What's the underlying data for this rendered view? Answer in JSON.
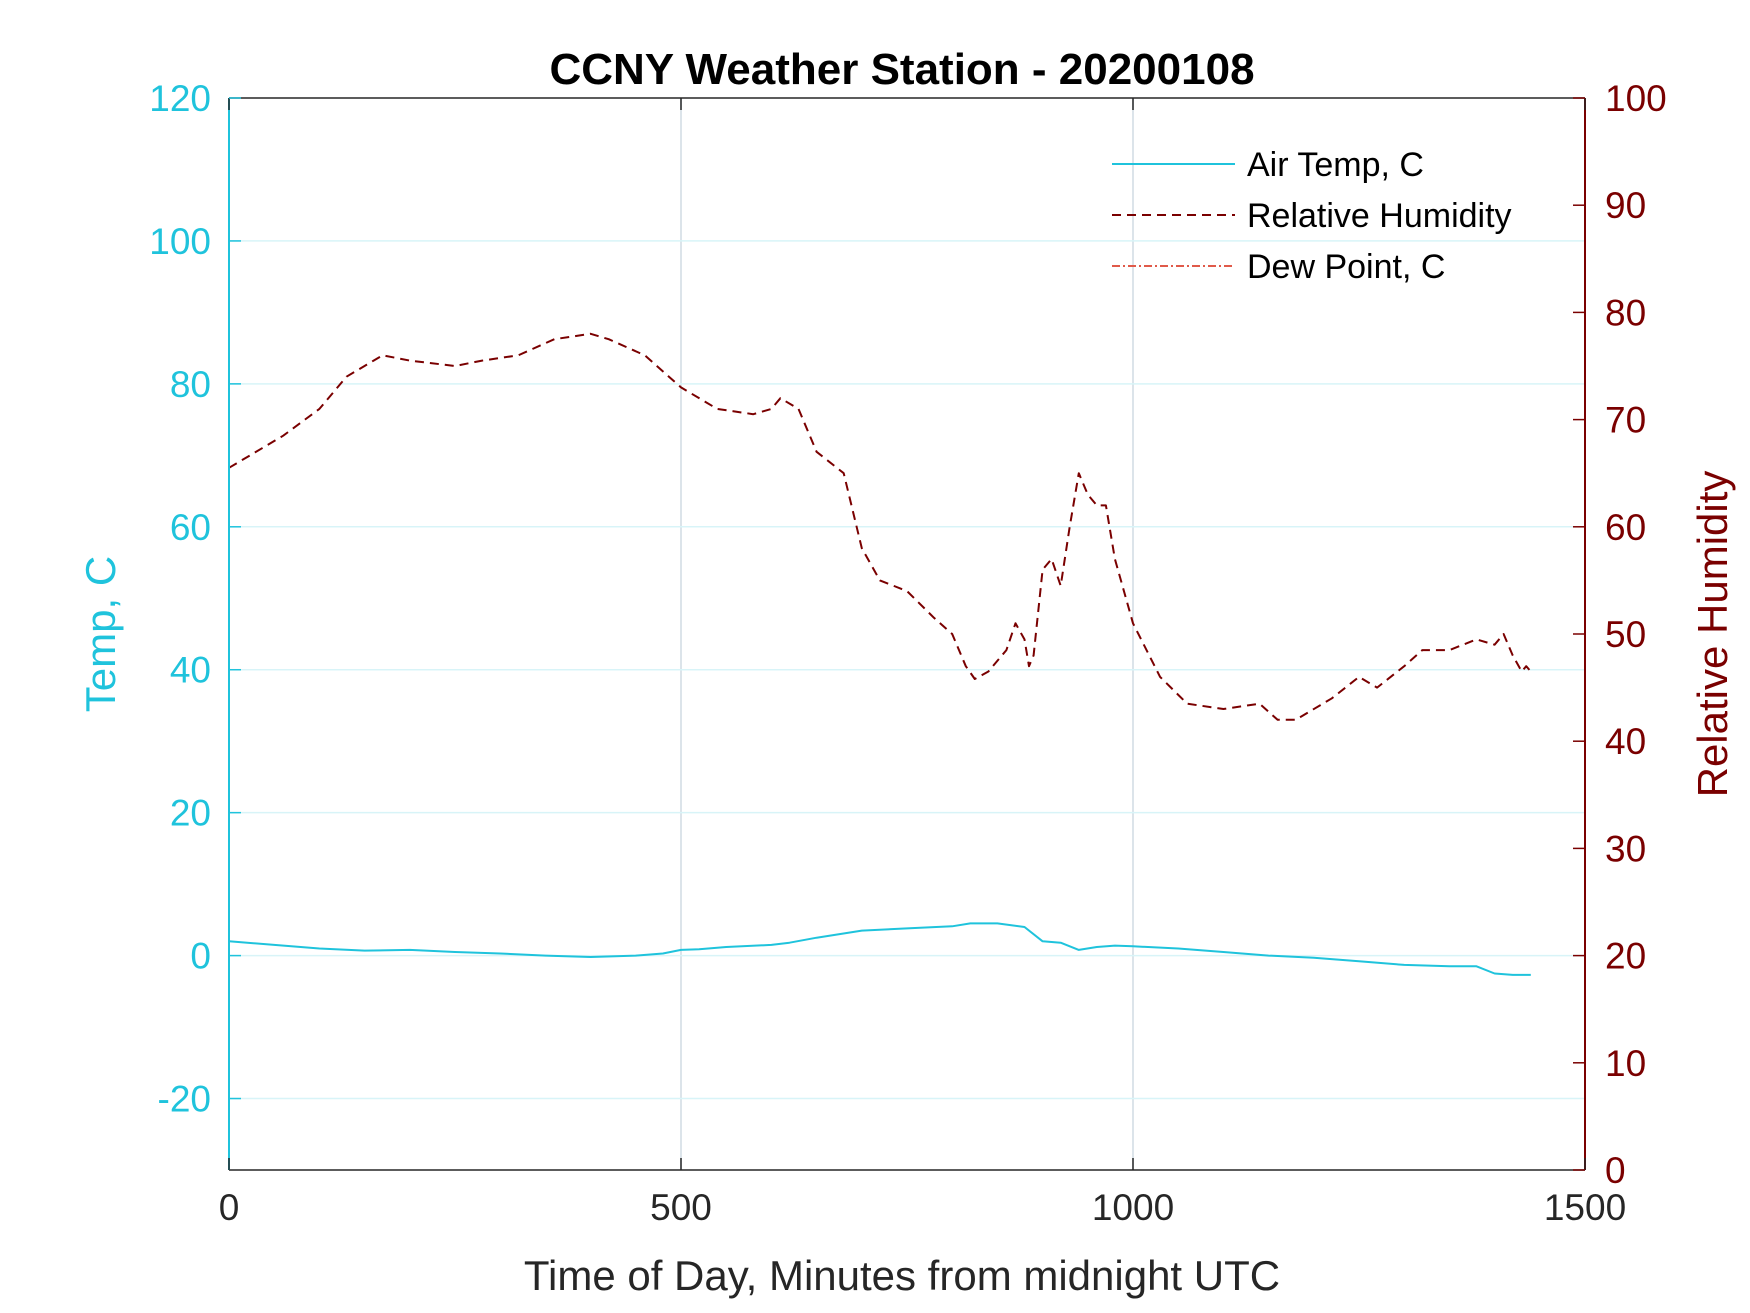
{
  "chart_data": {
    "type": "line",
    "title": "CCNY Weather Station - 20200108",
    "xlabel": "Time of Day, Minutes from midnight UTC",
    "ylabel_left": "Temp, C",
    "ylabel_right": "Relative Humidity",
    "xlim": [
      0,
      1500
    ],
    "ylim_left": [
      -30,
      120
    ],
    "ylim_right": [
      0,
      100
    ],
    "xticks": [
      0,
      500,
      1000,
      1500
    ],
    "yticks_left": [
      -20,
      0,
      20,
      40,
      60,
      80,
      100,
      120
    ],
    "yticks_right": [
      0,
      10,
      20,
      30,
      40,
      50,
      60,
      70,
      80,
      90,
      100
    ],
    "grid": true,
    "legend_position": "top-right",
    "colors": {
      "left_axis": "#1fc3dc",
      "right_axis": "#7a0000",
      "dew_point": "#e05a4a",
      "grid": "#d0dbe3"
    },
    "series": [
      {
        "name": "Air Temp, C",
        "axis": "left",
        "style": "solid",
        "color": "#1fc3dc",
        "x": [
          0,
          50,
          100,
          150,
          200,
          250,
          300,
          350,
          400,
          450,
          480,
          500,
          520,
          550,
          600,
          620,
          650,
          700,
          750,
          800,
          820,
          850,
          880,
          900,
          920,
          940,
          960,
          980,
          1000,
          1050,
          1100,
          1150,
          1200,
          1250,
          1300,
          1350,
          1380,
          1400,
          1420,
          1440
        ],
        "y": [
          2,
          1.5,
          1,
          0.7,
          0.8,
          0.5,
          0.3,
          0,
          -0.2,
          0,
          0.3,
          0.8,
          0.9,
          1.2,
          1.5,
          1.8,
          2.5,
          3.5,
          3.8,
          4.1,
          4.5,
          4.5,
          4,
          2,
          1.8,
          0.8,
          1.2,
          1.4,
          1.3,
          1,
          0.5,
          0,
          -0.3,
          -0.8,
          -1.3,
          -1.5,
          -1.5,
          -2.5,
          -2.7,
          -2.7
        ]
      },
      {
        "name": "Relative Humidity",
        "axis": "right",
        "style": "dashed",
        "color": "#7a0000",
        "x": [
          0,
          20,
          60,
          100,
          130,
          160,
          170,
          200,
          250,
          280,
          320,
          360,
          400,
          420,
          460,
          500,
          540,
          580,
          600,
          610,
          630,
          650,
          680,
          700,
          720,
          750,
          780,
          800,
          815,
          825,
          840,
          860,
          870,
          880,
          885,
          890,
          900,
          910,
          920,
          930,
          940,
          950,
          960,
          970,
          980,
          1000,
          1030,
          1060,
          1100,
          1140,
          1160,
          1180,
          1220,
          1250,
          1270,
          1300,
          1320,
          1350,
          1380,
          1400,
          1410,
          1420,
          1430,
          1435,
          1440
        ],
        "y": [
          65.5,
          66.5,
          68.5,
          71,
          74,
          75.5,
          76,
          75.5,
          75,
          75.5,
          76,
          77.5,
          78,
          77.5,
          76,
          73,
          71,
          70.5,
          71,
          72,
          71,
          67,
          65,
          58,
          55,
          54,
          51.5,
          50,
          47,
          45.8,
          46.5,
          48.5,
          51,
          49.5,
          47,
          48,
          56,
          57,
          54.5,
          60,
          65,
          63,
          62,
          62,
          57,
          51,
          46,
          43.5,
          43,
          43.5,
          42,
          42,
          44,
          46,
          45,
          47,
          48.5,
          48.5,
          49.5,
          49,
          50,
          48,
          46.5,
          47,
          46.5
        ]
      },
      {
        "name": "Dew Point, C",
        "axis": "left",
        "style": "dash-dot",
        "color": "#e05a4a",
        "x": [],
        "y": []
      }
    ]
  }
}
